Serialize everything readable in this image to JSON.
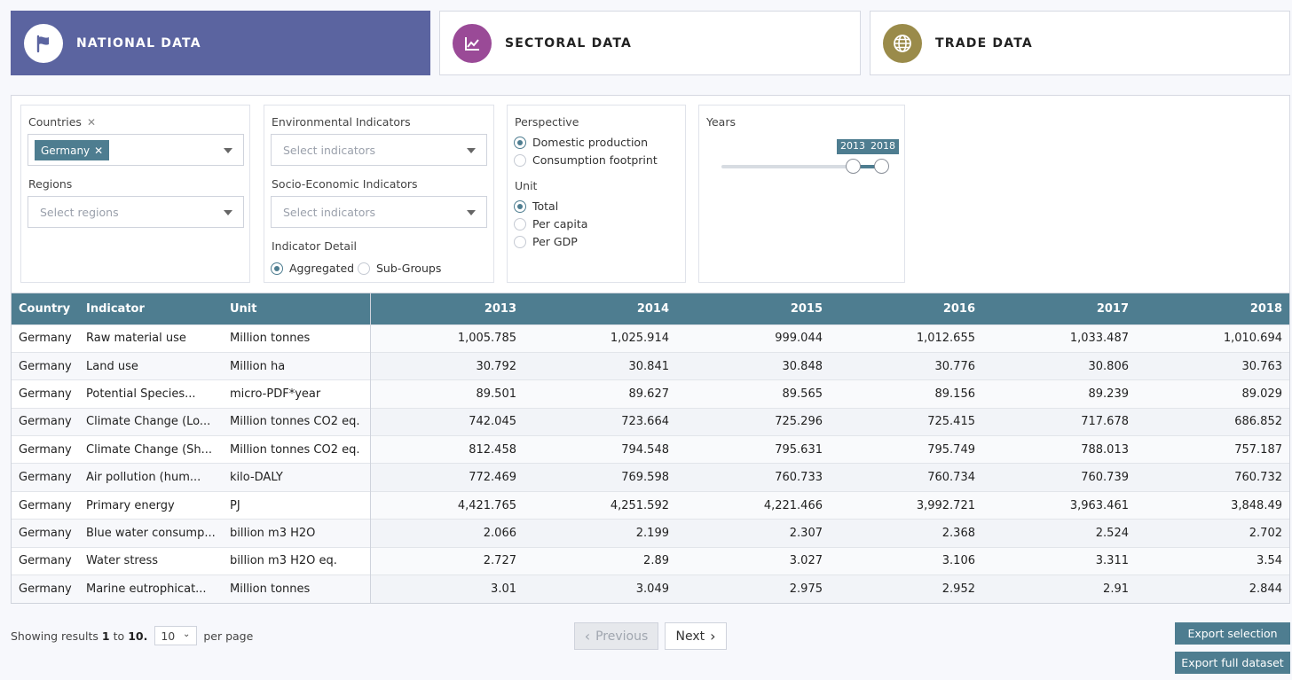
{
  "tabs": [
    {
      "label": "NATIONAL DATA",
      "icon": "flag-icon",
      "color": "#5b64a0",
      "active": true
    },
    {
      "label": "SECTORAL DATA",
      "icon": "chart-line-icon",
      "color": "#9a4a97",
      "active": false
    },
    {
      "label": "TRADE DATA",
      "icon": "globe-icon",
      "color": "#9a8b4a",
      "active": false
    }
  ],
  "filters": {
    "countries": {
      "label": "Countries",
      "selected": "Germany"
    },
    "regions": {
      "label": "Regions",
      "placeholder": "Select regions"
    },
    "env_indicators": {
      "label": "Environmental Indicators",
      "placeholder": "Select indicators"
    },
    "socio_indicators": {
      "label": "Socio-Economic Indicators",
      "placeholder": "Select indicators"
    },
    "indicator_detail": {
      "label": "Indicator Detail",
      "options": [
        "Aggregated",
        "Sub-Groups"
      ],
      "selected": "Aggregated"
    },
    "perspective": {
      "label": "Perspective",
      "options": [
        "Domestic production",
        "Consumption footprint"
      ],
      "selected": "Domestic production"
    },
    "unit": {
      "label": "Unit",
      "options": [
        "Total",
        "Per capita",
        "Per GDP"
      ],
      "selected": "Total"
    },
    "years": {
      "label": "Years",
      "from": "2013",
      "to": "2018",
      "range_min": 1995,
      "range_max": 2018
    }
  },
  "table": {
    "headers": [
      "Country",
      "Indicator",
      "Unit",
      "2013",
      "2014",
      "2015",
      "2016",
      "2017",
      "2018"
    ],
    "rows": [
      [
        "Germany",
        "Raw material use",
        "Million tonnes",
        "1,005.785",
        "1,025.914",
        "999.044",
        "1,012.655",
        "1,033.487",
        "1,010.694"
      ],
      [
        "Germany",
        "Land use",
        "Million ha",
        "30.792",
        "30.841",
        "30.848",
        "30.776",
        "30.806",
        "30.763"
      ],
      [
        "Germany",
        "Potential Species...",
        "micro-PDF*year",
        "89.501",
        "89.627",
        "89.565",
        "89.156",
        "89.239",
        "89.029"
      ],
      [
        "Germany",
        "Climate Change (Lo...",
        "Million tonnes CO2 eq.",
        "742.045",
        "723.664",
        "725.296",
        "725.415",
        "717.678",
        "686.852"
      ],
      [
        "Germany",
        "Climate Change (Sh...",
        "Million tonnes CO2 eq.",
        "812.458",
        "794.548",
        "795.631",
        "795.749",
        "788.013",
        "757.187"
      ],
      [
        "Germany",
        "Air pollution (hum...",
        "kilo-DALY",
        "772.469",
        "769.598",
        "760.733",
        "760.734",
        "760.739",
        "760.732"
      ],
      [
        "Germany",
        "Primary energy",
        "PJ",
        "4,421.765",
        "4,251.592",
        "4,221.466",
        "3,992.721",
        "3,963.461",
        "3,848.49"
      ],
      [
        "Germany",
        "Blue water consump...",
        "billion m3 H2O",
        "2.066",
        "2.199",
        "2.307",
        "2.368",
        "2.524",
        "2.702"
      ],
      [
        "Germany",
        "Water stress",
        "billion m3 H2O eq.",
        "2.727",
        "2.89",
        "3.027",
        "3.106",
        "3.311",
        "3.54"
      ],
      [
        "Germany",
        "Marine eutrophicat...",
        "Million tonnes",
        "3.01",
        "3.049",
        "2.975",
        "2.952",
        "2.91",
        "2.844"
      ]
    ]
  },
  "pagination": {
    "showing_prefix": "Showing results",
    "from": "1",
    "to_word": "to",
    "to": "10.",
    "per_page_value": "10",
    "per_page_suffix": "per page",
    "prev_label": "Previous",
    "next_label": "Next"
  },
  "export": {
    "selection_label": "Export selection",
    "full_label": "Export full dataset"
  }
}
